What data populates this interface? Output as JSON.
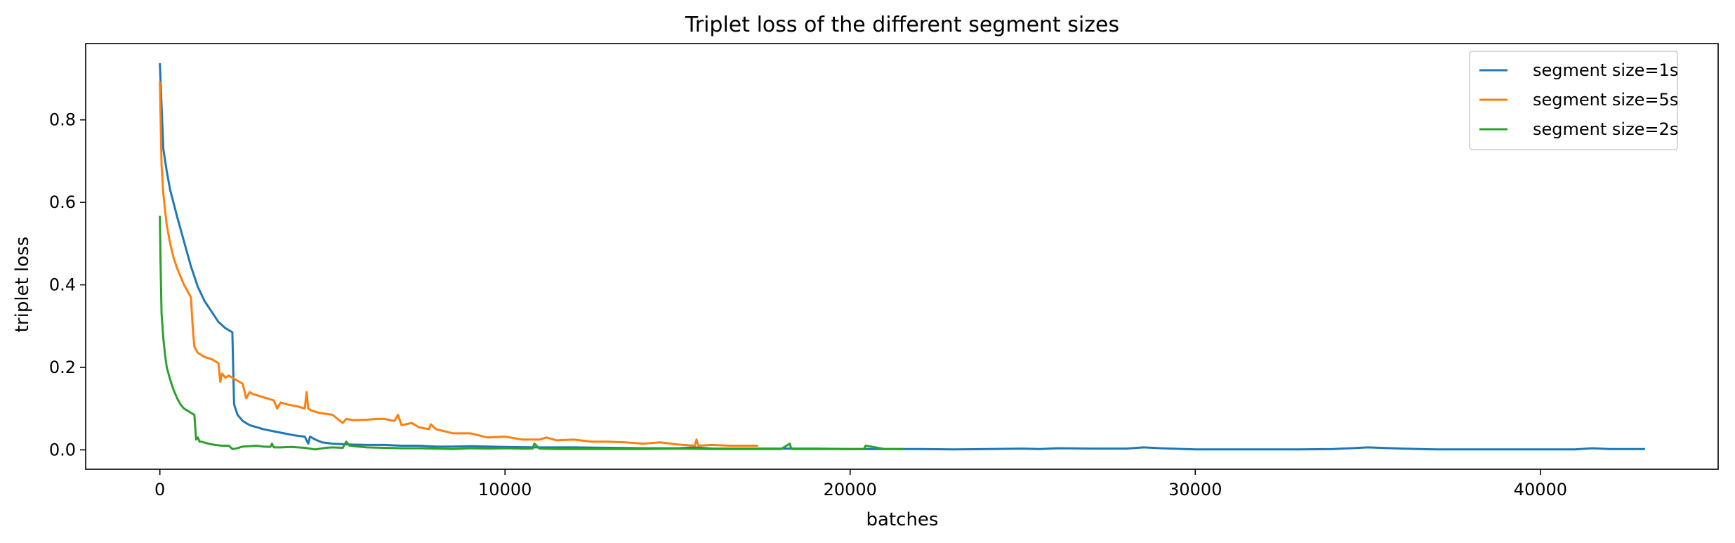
{
  "chart_data": {
    "type": "line",
    "title": "Triplet loss of the different segment sizes",
    "xlabel": "batches",
    "ylabel": "triplet loss",
    "xlim": [
      -2150,
      45150
    ],
    "ylim": [
      -0.047,
      0.985
    ],
    "xticks": [
      0,
      10000,
      20000,
      30000,
      40000
    ],
    "xtick_labels": [
      "0",
      "10000",
      "20000",
      "30000",
      "40000"
    ],
    "yticks": [
      0.0,
      0.2,
      0.4,
      0.6,
      0.8
    ],
    "ytick_labels": [
      "0.0",
      "0.2",
      "0.4",
      "0.6",
      "0.8"
    ],
    "grid": false,
    "legend_position": "top-right",
    "series": [
      {
        "name": "segment size=1s",
        "color": "#1f77b4",
        "x": [
          0,
          100,
          200,
          300,
          500,
          700,
          900,
          1100,
          1300,
          1500,
          1700,
          1900,
          2100,
          2150,
          2250,
          2400,
          2600,
          2800,
          3000,
          3300,
          3600,
          3900,
          4200,
          4300,
          4350,
          4500,
          4700,
          5000,
          5500,
          6000,
          6500,
          7000,
          7500,
          8000,
          8500,
          9000,
          10000,
          11000,
          12000,
          13000,
          14000,
          15000,
          15500,
          16000,
          17000,
          18000,
          19000,
          20000,
          21000,
          22000,
          23000,
          24000,
          25000,
          25500,
          26000,
          27000,
          28000,
          28500,
          29000,
          30000,
          31000,
          32000,
          33000,
          34000,
          34500,
          35000,
          36000,
          37000,
          38000,
          39000,
          40000,
          41000,
          41500,
          42000,
          43000
        ],
        "y": [
          0.935,
          0.73,
          0.675,
          0.63,
          0.565,
          0.505,
          0.445,
          0.395,
          0.36,
          0.335,
          0.31,
          0.295,
          0.285,
          0.11,
          0.085,
          0.07,
          0.06,
          0.055,
          0.05,
          0.045,
          0.04,
          0.035,
          0.032,
          0.015,
          0.032,
          0.025,
          0.018,
          0.015,
          0.013,
          0.012,
          0.012,
          0.01,
          0.01,
          0.008,
          0.008,
          0.009,
          0.007,
          0.006,
          0.006,
          0.005,
          0.004,
          0.004,
          0.006,
          0.003,
          0.003,
          0.003,
          0.003,
          0.002,
          0.002,
          0.002,
          0.001,
          0.002,
          0.003,
          0.002,
          0.004,
          0.003,
          0.003,
          0.006,
          0.004,
          0.001,
          0.001,
          0.001,
          0.001,
          0.002,
          0.004,
          0.006,
          0.003,
          0.001,
          0.001,
          0.001,
          0.001,
          0.001,
          0.004,
          0.002,
          0.002
        ]
      },
      {
        "name": "segment size=5s",
        "color": "#ff7f0e",
        "x": [
          0,
          50,
          100,
          200,
          300,
          400,
          500,
          600,
          700,
          800,
          900,
          950,
          1000,
          1100,
          1300,
          1500,
          1700,
          1750,
          1800,
          1900,
          2000,
          2200,
          2400,
          2500,
          2600,
          2700,
          2900,
          3100,
          3300,
          3400,
          3500,
          3700,
          4000,
          4200,
          4250,
          4300,
          4400,
          4600,
          5000,
          5300,
          5400,
          5600,
          6000,
          6300,
          6500,
          6800,
          6900,
          7000,
          7300,
          7500,
          7800,
          7850,
          8000,
          8500,
          9000,
          9500,
          10000,
          10500,
          11000,
          11200,
          11500,
          12000,
          12500,
          13000,
          13500,
          14000,
          14500,
          15000,
          15500,
          15550,
          15600,
          16000,
          16500,
          17000,
          17300
        ],
        "y": [
          0.89,
          0.69,
          0.62,
          0.545,
          0.5,
          0.465,
          0.44,
          0.42,
          0.4,
          0.385,
          0.37,
          0.3,
          0.25,
          0.235,
          0.225,
          0.22,
          0.21,
          0.165,
          0.185,
          0.175,
          0.18,
          0.17,
          0.16,
          0.125,
          0.14,
          0.135,
          0.13,
          0.125,
          0.12,
          0.1,
          0.115,
          0.11,
          0.105,
          0.1,
          0.14,
          0.1,
          0.095,
          0.09,
          0.085,
          0.065,
          0.075,
          0.072,
          0.073,
          0.075,
          0.075,
          0.07,
          0.085,
          0.06,
          0.065,
          0.055,
          0.05,
          0.062,
          0.05,
          0.04,
          0.04,
          0.03,
          0.032,
          0.025,
          0.025,
          0.03,
          0.023,
          0.025,
          0.02,
          0.02,
          0.018,
          0.015,
          0.018,
          0.013,
          0.01,
          0.025,
          0.01,
          0.012,
          0.01,
          0.01,
          0.01
        ]
      },
      {
        "name": "segment size=2s",
        "color": "#2ca02c",
        "x": [
          0,
          20,
          50,
          100,
          150,
          200,
          300,
          400,
          500,
          600,
          700,
          800,
          900,
          1000,
          1050,
          1100,
          1150,
          1200,
          1400,
          1600,
          1800,
          2000,
          2100,
          2200,
          2400,
          2600,
          2800,
          3000,
          3200,
          3250,
          3300,
          3500,
          3800,
          4000,
          4200,
          4500,
          4800,
          5000,
          5300,
          5400,
          5500,
          6000,
          6500,
          7000,
          7500,
          8000,
          8500,
          9000,
          9500,
          10000,
          10500,
          10800,
          10850,
          11000,
          11500,
          12000,
          13000,
          14000,
          15000,
          16000,
          17000,
          18000,
          18250,
          18300,
          19000,
          20000,
          20400,
          20450,
          21000,
          21500
        ],
        "y": [
          0.565,
          0.45,
          0.33,
          0.27,
          0.23,
          0.2,
          0.17,
          0.145,
          0.125,
          0.11,
          0.1,
          0.095,
          0.09,
          0.085,
          0.025,
          0.03,
          0.02,
          0.02,
          0.015,
          0.012,
          0.01,
          0.01,
          0.002,
          0.003,
          0.008,
          0.009,
          0.01,
          0.008,
          0.007,
          0.015,
          0.006,
          0.006,
          0.007,
          0.006,
          0.005,
          0.001,
          0.005,
          0.006,
          0.005,
          0.02,
          0.01,
          0.006,
          0.005,
          0.004,
          0.004,
          0.003,
          0.002,
          0.004,
          0.003,
          0.004,
          0.003,
          0.003,
          0.015,
          0.003,
          0.002,
          0.002,
          0.002,
          0.002,
          0.003,
          0.002,
          0.002,
          0.002,
          0.015,
          0.002,
          0.002,
          0.002,
          0.002,
          0.01,
          0.002,
          0.002
        ]
      }
    ]
  }
}
